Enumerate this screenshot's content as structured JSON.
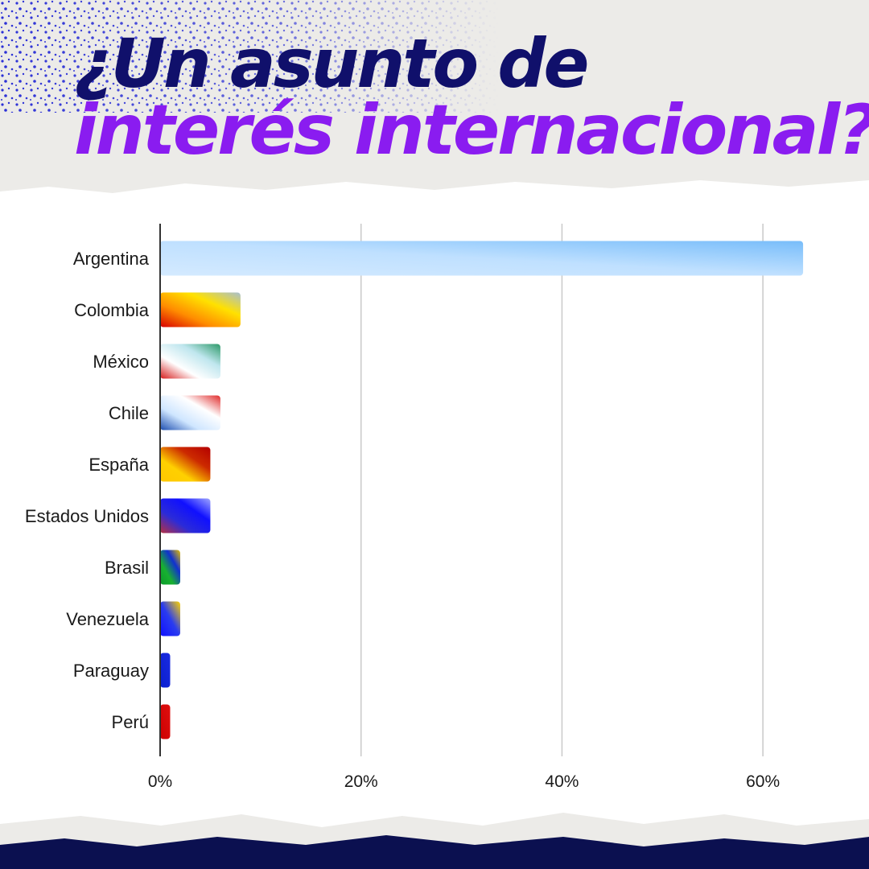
{
  "title": {
    "line1": "¿Un asunto de",
    "line2": "interés internacional?"
  },
  "colors": {
    "title_line1": "#10106b",
    "title_line2": "#8a1cf0",
    "top_texture": "#2a2fd6",
    "bottom_band": "#0b1050"
  },
  "chart_data": {
    "type": "bar",
    "orientation": "horizontal",
    "categories": [
      "Argentina",
      "Colombia",
      "México",
      "Chile",
      "España",
      "Estados Unidos",
      "Brasil",
      "Venezuela",
      "Paraguay",
      "Perú"
    ],
    "values": [
      64,
      8,
      6,
      6,
      5,
      5,
      2,
      2,
      1,
      1
    ],
    "xlim": [
      0,
      70
    ],
    "xticks": [
      0,
      20,
      40,
      60
    ],
    "xtick_labels": [
      "0%",
      "20%",
      "40%",
      "60%"
    ],
    "grid": true,
    "bar_fills": [
      [
        "#d4eaff",
        "#bfe0ff",
        "#78bdfa"
      ],
      [
        "#d80000",
        "#ff8c00",
        "#ffe100",
        "#a8bfd0"
      ],
      [
        "#d61c1c",
        "#ffffff",
        "#bfe6ee",
        "#2e9a6a"
      ],
      [
        "#1d4eb0",
        "#cfe6ff",
        "#ffffff",
        "#e02c2c"
      ],
      [
        "#ffc800",
        "#ffd000",
        "#cc2a00",
        "#b40000"
      ],
      [
        "#b83040",
        "#2b2bd8",
        "#1010ff",
        "#9fa6ff"
      ],
      [
        "#0b9a2a",
        "#18b030",
        "#1030d0",
        "#e8c000"
      ],
      [
        "#1010ff",
        "#2a3cf0",
        "#ffd400"
      ],
      [
        "#0a20d0",
        "#1a2ae0"
      ],
      [
        "#cc0000",
        "#e01010"
      ]
    ]
  }
}
